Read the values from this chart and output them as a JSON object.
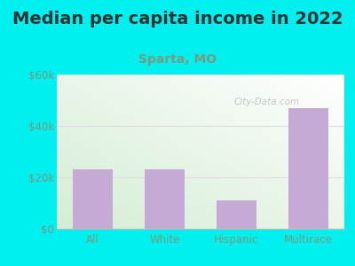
{
  "title": "Median per capita income in 2022",
  "subtitle": "Sparta, MO",
  "categories": [
    "All",
    "White",
    "Hispanic",
    "Multirace"
  ],
  "values": [
    23000,
    23000,
    11000,
    47000
  ],
  "bar_color": "#c4aad4",
  "title_fontsize": 14,
  "title_color": "#333333",
  "subtitle_fontsize": 10,
  "subtitle_color": "#7a9a7a",
  "tick_color": "#7a9a7a",
  "background_outer": "#00f0f0",
  "ylim": [
    0,
    60000
  ],
  "yticks": [
    0,
    20000,
    40000,
    60000
  ],
  "ytick_labels": [
    "$0",
    "$20k",
    "$40k",
    "$60k"
  ],
  "watermark": "City-Data.com",
  "grid_color": "#dddddd"
}
